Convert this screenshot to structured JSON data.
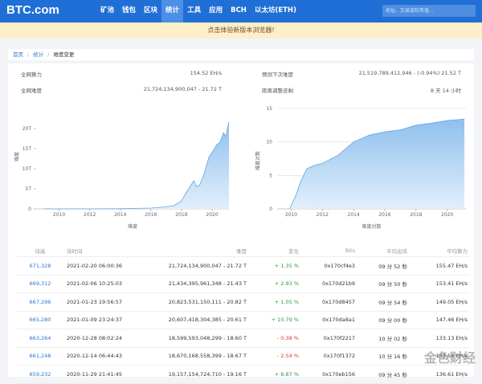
{
  "header": {
    "logo": "BTC.com",
    "nav": [
      "矿池",
      "钱包",
      "区块",
      "统计",
      "工具",
      "应用",
      "BCH",
      "以太坊(ETH)"
    ],
    "active_nav": 3,
    "search_placeholder": "地址、交易或哈希值..."
  },
  "banner": "点击体验新版本浏览器!",
  "breadcrumb": [
    "首页",
    "统计",
    "难度变更"
  ],
  "stats": {
    "left": [
      {
        "label": "全网算力",
        "value": "154.52 EH/s"
      },
      {
        "label": "全网难度",
        "value": "21,724,134,900,047 - 21.72 T"
      }
    ],
    "right": [
      {
        "label": "预测下次难度",
        "value": "21,519,789,412,946 - (-0.94%) 21.52 T"
      },
      {
        "label": "距离调整还剩",
        "value": "8 天 14 小时"
      }
    ]
  },
  "charts": [
    {
      "y_label": "难度",
      "x_label": "难度",
      "color": "#5ea5e8",
      "x": [
        2009.0,
        2012,
        2014,
        2016,
        2017,
        2017.5,
        2018,
        2018.3,
        2018.8,
        2019.0,
        2019.2,
        2019.5,
        2019.8,
        2020.0,
        2020.3,
        2020.5,
        2020.75,
        2020.9,
        2021.1
      ],
      "values": [
        0,
        0,
        0.05,
        0.2,
        0.5,
        0.8,
        2,
        4,
        7,
        5.5,
        6,
        9,
        13,
        14,
        16,
        16.5,
        19,
        18,
        21.7
      ],
      "xlim": [
        2008.5,
        2021.1
      ],
      "ylim": [
        0,
        26
      ],
      "xticks": [
        2010,
        2012,
        2014,
        2016,
        2018,
        2020
      ],
      "yticks": [
        0,
        {
          "value": 5,
          "label": "5T"
        },
        {
          "value": 10,
          "label": "10T"
        },
        {
          "value": 15,
          "label": "15T"
        },
        {
          "value": 20,
          "label": "20T"
        }
      ]
    },
    {
      "y_label": "难度对数",
      "x_label": "难度对数",
      "color": "#5ea5e8",
      "x": [
        2009.9,
        2010.3,
        2010.6,
        2011.0,
        2011.5,
        2012.0,
        2013.0,
        2014.0,
        2014.5,
        2015.0,
        2016.0,
        2017.0,
        2018.0,
        2019.0,
        2020.0,
        2021.1
      ],
      "values": [
        0,
        2,
        4,
        6,
        6.5,
        6.8,
        8,
        10,
        10.5,
        11,
        11.5,
        11.8,
        12.5,
        12.8,
        13.2,
        13.4
      ],
      "xlim": [
        2009.1,
        2021.2
      ],
      "ylim": [
        0,
        14.4
      ],
      "xticks": [
        2010,
        2012,
        2014,
        2016,
        2018,
        2020
      ],
      "yticks": [
        0,
        5,
        10,
        15
      ],
      "grid": true
    }
  ],
  "table": {
    "columns": [
      "块高",
      "块时间",
      "难度",
      "变化",
      "Bits",
      "平均出块",
      "平均算力"
    ],
    "rows": [
      [
        "671,328",
        "2021-02-20 06:00:36",
        "21,724,134,900,047 - 21.72 T",
        "+ 1.35 %",
        "0x170cf4e3",
        "09 分 52 秒",
        "155.47 EH/s"
      ],
      [
        "669,312",
        "2021-02-06 10:25:03",
        "21,434,395,961,348 - 21.43 T",
        "+ 2.93 %",
        "0x170d21b9",
        "09 分 50 秒",
        "153.41 EH/s"
      ],
      [
        "667,296",
        "2021-01-23 19:56:57",
        "20,823,531,150,111 - 20.82 T",
        "+ 1.05 %",
        "0x170d8457",
        "09 分 54 秒",
        "149.05 EH/s"
      ],
      [
        "665,280",
        "2021-01-09 23:24:37",
        "20,607,418,304,385 - 20.61 T",
        "+ 10.79 %",
        "0x170da8a1",
        "09 分 00 秒",
        "147.46 EH/s"
      ],
      [
        "663,264",
        "2020-12-28 08:02:24",
        "18,599,593,048,299 - 18.60 T",
        "- 0.38 %",
        "0x170f2217",
        "10 分 02 秒",
        "133.13 EH/s"
      ],
      [
        "661,248",
        "2020-12-14 06:44:43",
        "18,670,168,558,399 - 18.67 T",
        "- 2.54 %",
        "0x170f1372",
        "10 分 16 秒",
        "133.54 EH/s"
      ],
      [
        "659,232",
        "2020-11-29 21:41:45",
        "19,157,154,724,710 - 19.16 T",
        "+ 8.87 %",
        "0x170eb156",
        "09 分 45 秒",
        "136.61 EH/s"
      ]
    ]
  },
  "watermark": "金色财经"
}
